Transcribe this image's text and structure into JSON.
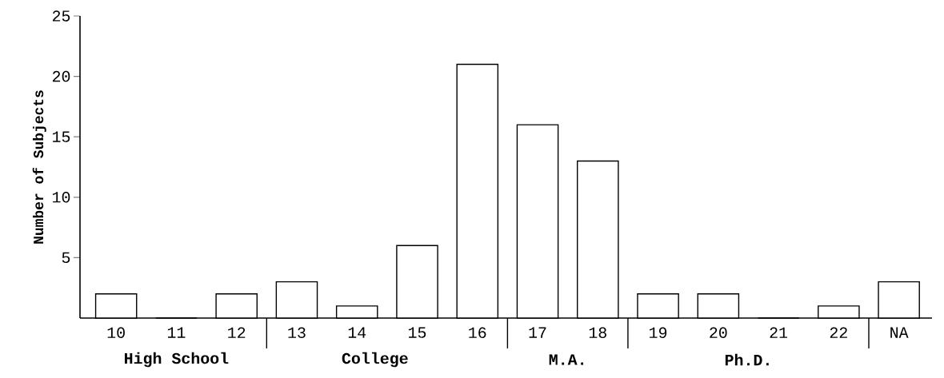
{
  "chart_data": {
    "type": "bar",
    "ylabel": "Number of Subjects",
    "categories": [
      "10",
      "11",
      "12",
      "13",
      "14",
      "15",
      "16",
      "17",
      "18",
      "19",
      "20",
      "21",
      "22",
      "NA"
    ],
    "values": [
      2,
      0,
      2,
      3,
      1,
      6,
      21,
      16,
      13,
      2,
      2,
      0,
      1,
      3
    ],
    "color": "#ffffff",
    "ylim": [
      0,
      25
    ],
    "yticks": [
      5,
      10,
      15,
      20,
      25
    ],
    "grid": false,
    "annotations": [
      "High School",
      "College",
      "M.A.",
      "Ph.D."
    ]
  }
}
